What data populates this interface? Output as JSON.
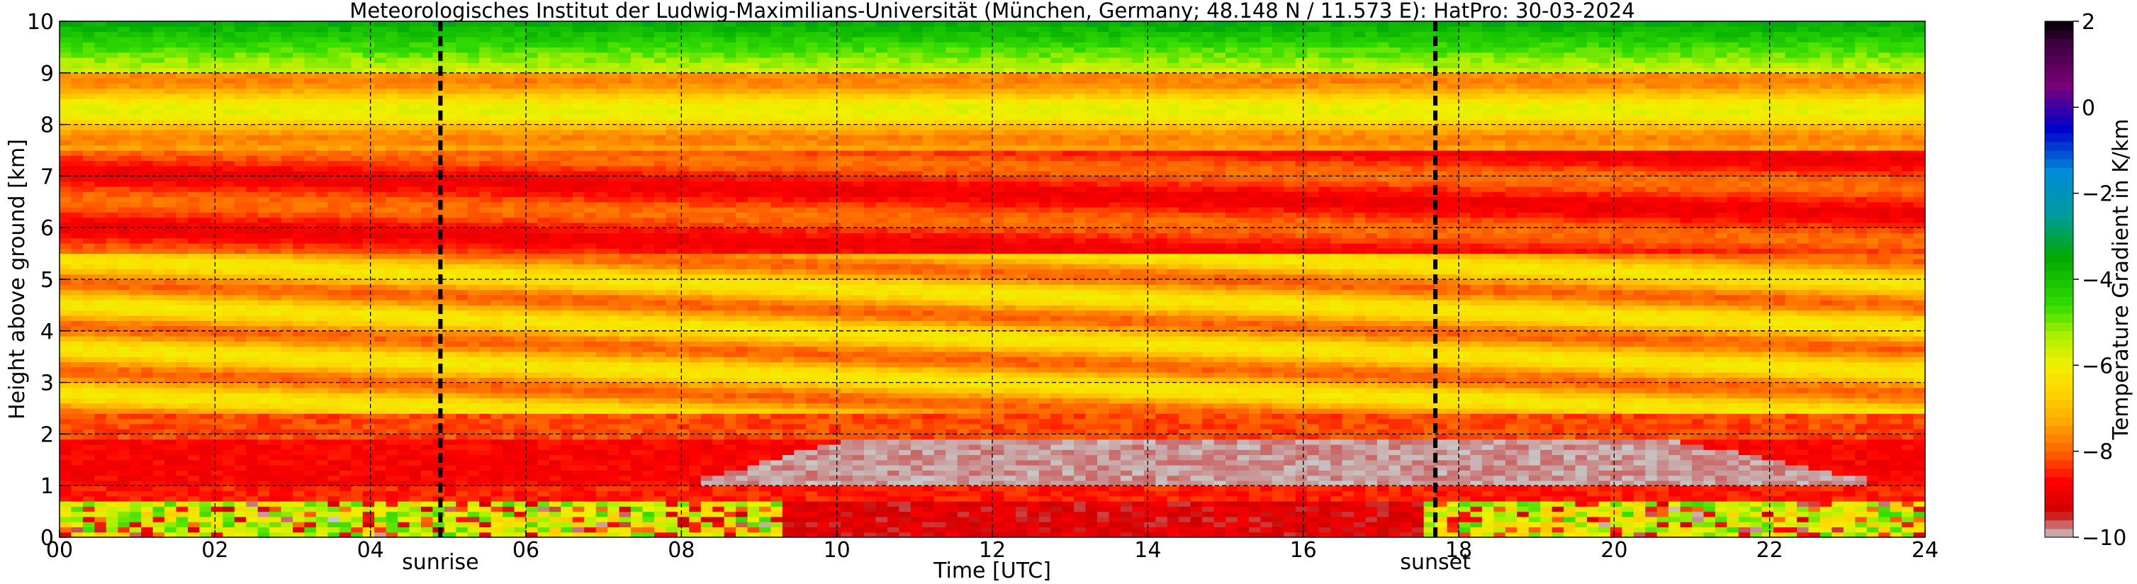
{
  "chart_data": {
    "type": "heatmap",
    "title": "Meteorologisches Institut der Ludwig-Maximilians-Universität (München, Germany; 48.148 N / 11.573 E):    HatPro: 30-03-2024",
    "xlabel": "Time [UTC]",
    "ylabel": "Height above ground [km]",
    "xlim": [
      0,
      24
    ],
    "ylim": [
      0,
      10
    ],
    "x_ticks": [
      "00",
      "02",
      "04",
      "06",
      "08",
      "10",
      "12",
      "14",
      "16",
      "18",
      "20",
      "22",
      "24"
    ],
    "y_ticks": [
      "0",
      "1",
      "2",
      "3",
      "4",
      "5",
      "6",
      "7",
      "8",
      "9",
      "10"
    ],
    "grid": true,
    "events": [
      {
        "label": "sunrise",
        "x": 4.9
      },
      {
        "label": "sunset",
        "x": 17.7
      }
    ],
    "colorbar": {
      "label": "Temperature Gradient in K/km",
      "range": [
        -10,
        2
      ],
      "ticks": [
        "2",
        "0",
        "−2",
        "−4",
        "−6",
        "−8",
        "−10"
      ],
      "colors": [
        "#c8c8c8",
        "#c80000",
        "#ff0000",
        "#ff6a00",
        "#ffaa00",
        "#ffd800",
        "#f0f000",
        "#aaf000",
        "#33dd00",
        "#00b400",
        "#009b9b",
        "#0088d8",
        "#0000cc",
        "#7a007a",
        "#000000"
      ]
    },
    "layers_description_km": [
      {
        "from": 0,
        "to": 0.75,
        "value_range": [
          -10,
          -4
        ]
      },
      {
        "from": 0.75,
        "to": 1.0,
        "value_range": [
          -9,
          -8
        ]
      },
      {
        "from": 1.0,
        "to": 1.9,
        "value_range": [
          -10,
          -8
        ]
      },
      {
        "from": 1.9,
        "to": 2.4,
        "value_range": [
          -9,
          -8
        ]
      },
      {
        "from": 2.4,
        "to": 5.5,
        "value_range": [
          -8,
          -6
        ]
      },
      {
        "from": 5.5,
        "to": 7.5,
        "value_range": [
          -9,
          -8
        ]
      },
      {
        "from": 7.5,
        "to": 9.0,
        "value_range": [
          -8,
          -6
        ]
      },
      {
        "from": 9.0,
        "to": 10.0,
        "value_range": [
          -6,
          -3
        ]
      }
    ]
  }
}
